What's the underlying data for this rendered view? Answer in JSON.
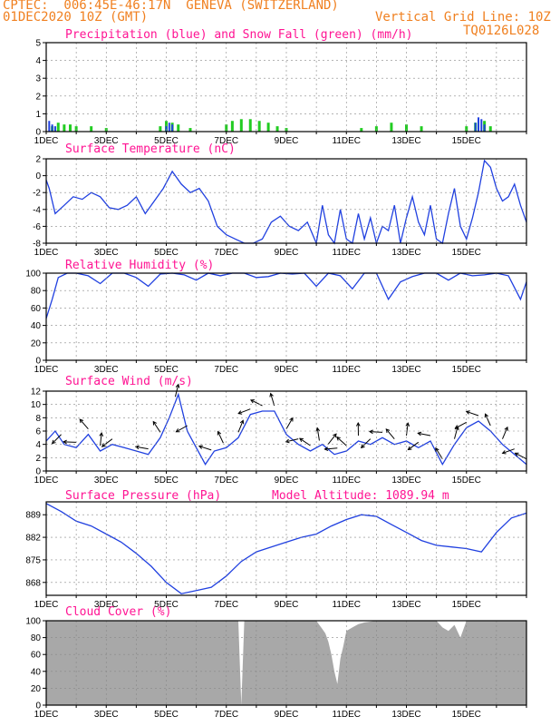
{
  "header": {
    "line1_left": "CPTEC:  006:45E-46:17N  GENEVA (SWITZERLAND)",
    "line2_left": "01DEC2020 10Z (GMT)",
    "line2_right": "Vertical Grid Line: 10Z",
    "code": "TQ0126L028",
    "model_altitude": "Model Altitude: 1089.94 m"
  },
  "colors": {
    "header": "#f08020",
    "title": "#ff1493",
    "line": "#2040e0",
    "snow": "#22cc22",
    "precip": "#2040e0",
    "cloud": "#a8a8a8"
  },
  "x_labels": [
    "1DEC",
    "3DEC",
    "5DEC",
    "7DEC",
    "9DEC",
    "11DEC",
    "13DEC",
    "15DEC"
  ],
  "chart_data": [
    {
      "type": "bar",
      "title": "Precipitation (blue) and Snow Fall (green) (mm/h)",
      "ylim": [
        0,
        5
      ],
      "yticks": [
        "0",
        "1",
        "2",
        "3",
        "4",
        "5"
      ],
      "series": [
        {
          "name": "Precipitation",
          "x": [
            0.1,
            0.2,
            0.3,
            4.0,
            4.1,
            4.2,
            14.3,
            14.4,
            14.5,
            14.6
          ],
          "values": [
            0.6,
            0.4,
            0.3,
            0.3,
            0.5,
            0.4,
            0.5,
            0.8,
            0.7,
            0.4
          ]
        },
        {
          "name": "Snow Fall",
          "x": [
            0.2,
            0.4,
            0.6,
            0.8,
            1.0,
            1.5,
            2.0,
            3.8,
            4.0,
            4.2,
            4.4,
            4.8,
            6.0,
            6.2,
            6.5,
            6.8,
            7.1,
            7.4,
            7.7,
            8.0,
            10.5,
            11.0,
            11.5,
            12.0,
            12.5,
            14.0,
            14.3,
            14.6,
            14.8
          ],
          "values": [
            0.3,
            0.5,
            0.4,
            0.4,
            0.3,
            0.3,
            0.2,
            0.3,
            0.6,
            0.5,
            0.4,
            0.2,
            0.4,
            0.6,
            0.7,
            0.7,
            0.6,
            0.5,
            0.3,
            0.2,
            0.2,
            0.3,
            0.5,
            0.4,
            0.3,
            0.3,
            0.5,
            0.6,
            0.3
          ]
        }
      ]
    },
    {
      "type": "line",
      "title": "Surface Temperature (nC)",
      "ylim": [
        -8,
        2
      ],
      "yticks": [
        "-8",
        "-6",
        "-4",
        "-2",
        "0",
        "2"
      ],
      "series": [
        {
          "x": [
            0,
            0.1,
            0.3,
            0.6,
            0.9,
            1.2,
            1.5,
            1.8,
            2.1,
            2.4,
            2.7,
            3.0,
            3.3,
            3.6,
            3.9,
            4.2,
            4.5,
            4.8,
            5.1,
            5.4,
            5.7,
            6.0,
            6.3,
            6.6,
            6.9,
            7.2,
            7.5,
            7.8,
            8.1,
            8.4,
            8.7,
            9.0,
            9.2,
            9.4,
            9.6,
            9.8,
            10.0,
            10.2,
            10.4,
            10.6,
            10.8,
            11.0,
            11.2,
            11.4,
            11.6,
            11.8,
            12.0,
            12.2,
            12.4,
            12.6,
            12.8,
            13.0,
            13.2,
            13.4,
            13.6,
            13.8,
            14.0,
            14.2,
            14.4,
            14.6,
            14.8,
            15.0,
            15.2,
            15.4,
            15.6,
            15.8,
            16.0
          ],
          "values": [
            -0.5,
            -1.5,
            -4.5,
            -3.5,
            -2.5,
            -2.8,
            -2.0,
            -2.5,
            -3.8,
            -4.0,
            -3.5,
            -2.5,
            -4.5,
            -3.0,
            -1.5,
            0.5,
            -1.0,
            -2.0,
            -1.5,
            -3.0,
            -6.0,
            -7.0,
            -7.5,
            -8.0,
            -8.0,
            -7.5,
            -5.5,
            -4.8,
            -6.0,
            -6.5,
            -5.5,
            -8.0,
            -3.5,
            -7.0,
            -8.0,
            -4.0,
            -7.5,
            -8.0,
            -4.5,
            -7.5,
            -5.0,
            -8.0,
            -6.0,
            -6.5,
            -3.5,
            -8.0,
            -5.0,
            -2.5,
            -5.5,
            -7.0,
            -3.5,
            -7.5,
            -8.0,
            -4.5,
            -1.5,
            -6.0,
            -7.5,
            -5.0,
            -2.0,
            1.8,
            1.0,
            -1.5,
            -3.0,
            -2.5,
            -1.0,
            -3.5,
            -5.5
          ]
        }
      ]
    },
    {
      "type": "line",
      "title": "Relative Humidity (%)",
      "ylim": [
        0,
        100
      ],
      "yticks": [
        "0",
        "20",
        "40",
        "60",
        "80",
        "100"
      ],
      "series": [
        {
          "x": [
            0,
            0.2,
            0.4,
            0.7,
            1.0,
            1.4,
            1.8,
            2.2,
            2.6,
            3.0,
            3.4,
            3.8,
            4.2,
            4.6,
            5.0,
            5.4,
            5.8,
            6.2,
            6.6,
            7.0,
            7.4,
            7.8,
            8.2,
            8.6,
            9.0,
            9.4,
            9.8,
            10.2,
            10.6,
            11.0,
            11.4,
            11.8,
            12.2,
            12.6,
            13.0,
            13.4,
            13.8,
            14.2,
            14.6,
            15.0,
            15.4,
            15.8,
            16.0
          ],
          "values": [
            48,
            70,
            95,
            100,
            100,
            97,
            88,
            100,
            100,
            95,
            85,
            99,
            100,
            98,
            92,
            100,
            97,
            100,
            100,
            95,
            96,
            100,
            99,
            100,
            85,
            100,
            97,
            82,
            100,
            100,
            70,
            90,
            96,
            100,
            100,
            92,
            100,
            97,
            98,
            100,
            97,
            70,
            90
          ]
        }
      ]
    },
    {
      "type": "line",
      "title": "Surface Wind (m/s)",
      "ylim": [
        0,
        12
      ],
      "yticks": [
        "0",
        "2",
        "4",
        "6",
        "8",
        "10",
        "12"
      ],
      "series": [
        {
          "x": [
            0,
            0.3,
            0.6,
            1.0,
            1.4,
            1.8,
            2.2,
            2.6,
            3.0,
            3.4,
            3.8,
            4.1,
            4.4,
            4.7,
            5.0,
            5.3,
            5.6,
            6.0,
            6.4,
            6.8,
            7.2,
            7.6,
            8.0,
            8.4,
            8.8,
            9.2,
            9.6,
            10.0,
            10.4,
            10.8,
            11.2,
            11.6,
            12.0,
            12.4,
            12.8,
            13.2,
            13.6,
            14.0,
            14.4,
            14.8,
            15.2,
            15.6,
            16.0
          ],
          "values": [
            4.5,
            6.0,
            4.0,
            3.5,
            5.5,
            3.0,
            4.0,
            3.5,
            3.0,
            2.5,
            5.0,
            8.0,
            11.5,
            6.0,
            3.5,
            1.0,
            3.0,
            3.5,
            5.0,
            8.5,
            9.0,
            9.0,
            5.5,
            4.0,
            3.0,
            4.0,
            2.5,
            3.0,
            4.5,
            4.0,
            5.0,
            4.0,
            4.5,
            3.5,
            4.5,
            1.0,
            4.0,
            6.5,
            7.5,
            6.0,
            4.0,
            2.5,
            1.0
          ]
        }
      ],
      "arrows": {
        "x": [
          0.5,
          1.0,
          1.4,
          1.8,
          2.2,
          3.4,
          3.8,
          4.3,
          4.7,
          5.5,
          5.9,
          6.4,
          6.8,
          7.2,
          7.6,
          8.0,
          8.4,
          8.8,
          9.1,
          9.4,
          9.7,
          10.0,
          10.4,
          10.8,
          11.2,
          11.6,
          12.0,
          12.4,
          12.8,
          13.2,
          13.6,
          14.0,
          14.4,
          14.8,
          15.2,
          15.6,
          16.0
        ]
      }
    },
    {
      "type": "line",
      "title": "Surface Pressure (hPa)",
      "ylim": [
        864,
        893
      ],
      "yticks": [
        "868",
        "875",
        "882",
        "889"
      ],
      "series": [
        {
          "x": [
            0,
            0.5,
            1.0,
            1.5,
            2.0,
            2.5,
            3.0,
            3.5,
            4.0,
            4.5,
            5.0,
            5.5,
            6.0,
            6.5,
            7.0,
            7.5,
            8.0,
            8.5,
            9.0,
            9.5,
            10.0,
            10.5,
            11.0,
            11.5,
            12.0,
            12.5,
            13.0,
            13.5,
            14.0,
            14.5,
            15.0,
            15.5,
            16.0
          ],
          "values": [
            892.5,
            890.0,
            887.0,
            885.5,
            883.0,
            880.5,
            877.0,
            873.0,
            868.0,
            864.5,
            865.5,
            866.5,
            870.0,
            874.5,
            877.5,
            879.0,
            880.5,
            882.0,
            883.0,
            885.5,
            887.5,
            889.0,
            888.5,
            886.0,
            883.5,
            881.0,
            879.5,
            879.0,
            878.5,
            877.5,
            883.5,
            888.0,
            889.5
          ]
        }
      ]
    },
    {
      "type": "area",
      "title": "Cloud Cover (%)",
      "ylim": [
        0,
        100
      ],
      "yticks": [
        "0",
        "20",
        "40",
        "60",
        "80",
        "100"
      ],
      "series": [
        {
          "x": [
            0,
            6.4,
            6.5,
            6.6,
            9.0,
            9.1,
            9.2,
            9.3,
            9.4,
            9.5,
            9.6,
            9.7,
            9.8,
            9.9,
            10.0,
            10.2,
            10.4,
            10.6,
            11.0,
            11.5,
            12.0,
            13.0,
            13.2,
            13.4,
            13.6,
            13.8,
            14.0,
            16.0
          ],
          "values": [
            100,
            100,
            0,
            100,
            100,
            95,
            90,
            85,
            75,
            60,
            40,
            25,
            55,
            70,
            88,
            92,
            96,
            98,
            100,
            100,
            100,
            100,
            92,
            88,
            95,
            80,
            100,
            100
          ]
        }
      ]
    }
  ]
}
